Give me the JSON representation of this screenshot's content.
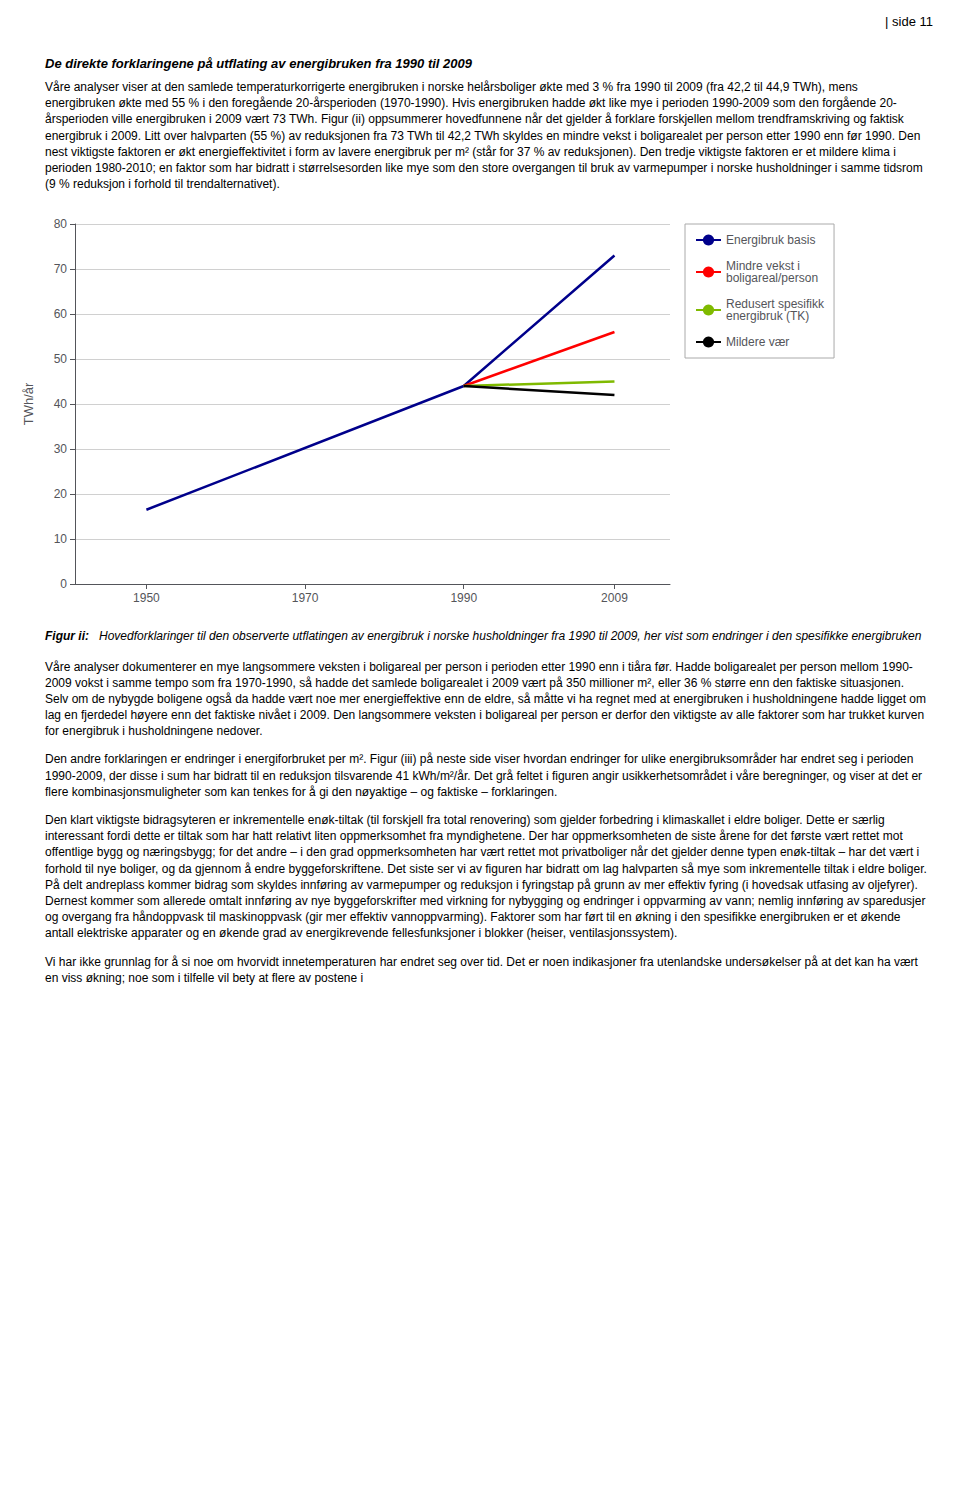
{
  "page": {
    "header": "| side 11",
    "heading": "De direkte forklaringene på utflating av energibruken fra 1990 til 2009",
    "text_above": [
      "Våre analyser viser at den samlede temperaturkorrigerte energibruken i norske helårsboliger økte med 3 % fra 1990 til 2009 (fra 42,2 til 44,9 TWh), mens energibruken økte med 55 % i den foregående 20-årsperioden (1970-1990). Hvis energibruken hadde økt like mye i perioden 1990-2009 som den forgående 20-årsperioden ville energibruken i 2009 vært 73 TWh. Figur (ii) oppsummerer hovedfunnene når det gjelder å forklare forskjellen mellom trendframskriving og faktisk energibruk i 2009. Litt over halvparten (55 %) av reduksjonen fra 73 TWh til 42,2 TWh skyldes en mindre vekst i boligarealet per person etter 1990 enn før 1990. Den nest viktigste faktoren er økt energieffektivitet i form av lavere energibruk per m² (står for 37 % av reduksjonen). Den tredje viktigste faktoren er et mildere klima i perioden 1980-2010; en faktor som har bidratt i størrelsesorden like mye som den store overgangen til bruk av varmepumper i norske husholdninger i samme tidsrom (9 % reduksjon i forhold til trendalternativet)."
    ],
    "caption_label": "Figur ii:",
    "caption": "Hovedforklaringer til den observerte utflatingen av energibruk i norske husholdninger fra 1990 til 2009, her vist som endringer i den spesifikke energibruken",
    "text_below": [
      "Våre analyser dokumenterer en mye langsommere veksten i boligareal per person i perioden etter 1990 enn i tiåra før. Hadde boligarealet per person mellom 1990-2009 vokst i samme tempo som fra 1970-1990, så hadde det samlede boligarealet i 2009 vært på 350 millioner m², eller 36 % større enn den faktiske situasjonen. Selv om de nybygde boligene også da hadde vært noe mer energieffektive enn de eldre, så måtte vi ha regnet med at energibruken i husholdningene hadde ligget om lag en fjerdedel høyere enn det faktiske nivået i 2009. Den langsommere veksten i boligareal per person er derfor den viktigste av alle faktorer som har trukket kurven for energibruk i husholdningene nedover.",
      "Den andre forklaringen er endringer i energiforbruket per m². Figur (iii) på neste side viser hvordan endringer for ulike energibruksområder har endret seg i perioden 1990-2009, der disse i sum har bidratt til en reduksjon tilsvarende 41 kWh/m²/år. Det grå feltet i figuren angir usikkerhetsområdet i våre beregninger, og viser at det er flere kombinasjonsmuligheter som kan tenkes for å gi den nøyaktige – og faktiske – forklaringen.",
      "Den klart viktigste bidragsyteren er inkrementelle enøk-tiltak (til forskjell fra total renovering) som gjelder forbedring i klimaskallet i eldre boliger. Dette er særlig interessant fordi dette er tiltak som har hatt relativt liten oppmerksomhet fra myndighetene. Der har oppmerksomheten de siste årene for det første vært rettet mot offentlige bygg og næringsbygg; for det andre – i den grad oppmerksomheten har vært rettet mot privatboliger når det gjelder denne typen enøk-tiltak – har det vært i forhold til nye boliger, og da gjennom å endre byggeforskriftene. Det siste ser vi av figuren har bidratt om lag halvparten så mye som inkrementelle tiltak i eldre boliger. På delt andreplass kommer bidrag som skyldes innføring av varmepumper og reduksjon i fyringstap på grunn av mer effektiv fyring (i hovedsak utfasing av oljefyrer). Dernest kommer som allerede omtalt innføring av nye byggeforskrifter med virkning for nybygging og endringer i oppvarming av vann; nemlig innføring av sparedusjer og overgang fra håndoppvask til maskinoppvask (gir mer effektiv vannoppvarming). Faktorer som har ført til en økning i den spesifikke energibruken er et økende antall elektriske apparater og en økende grad av energikrevende fellesfunksjoner i blokker (heiser, ventilasjonssystem).",
      "Vi har ikke grunnlag for å si noe om hvorvidt innetemperaturen har endret seg over tid. Det er noen indikasjoner fra utenlandske undersøkelser på at det kan ha vært en viss økning; noe som i tilfelle vil bety at flere av postene i"
    ]
  },
  "chart_data": {
    "type": "line",
    "y_label": "TWh/år",
    "xlim": [
      1941,
      2016
    ],
    "xticks": [
      1950,
      1970,
      1990,
      2009
    ],
    "ylim": [
      0,
      80
    ],
    "yticks": [
      0,
      10,
      20,
      30,
      40,
      50,
      60,
      70,
      80
    ],
    "grid": true,
    "legend": "upper right",
    "series": [
      {
        "name": "Energibruk basis",
        "color": "#00008B",
        "x": [
          1950,
          1990,
          2009
        ],
        "values": [
          16.5,
          44.0,
          73.0
        ]
      },
      {
        "name": "Mindre vekst i\nboligareal/person",
        "color": "#FF0000",
        "x": [
          1990,
          2009
        ],
        "values": [
          44.0,
          56.0
        ]
      },
      {
        "name": "Redusert spesifikk\nenergibruk (TK)",
        "color": "#7FBA00",
        "x": [
          1990,
          2009
        ],
        "values": [
          44.0,
          45.0
        ]
      },
      {
        "name": "Mildere vær",
        "color": "#000000",
        "x": [
          1990,
          2009
        ],
        "values": [
          44.0,
          42.0
        ]
      }
    ]
  }
}
